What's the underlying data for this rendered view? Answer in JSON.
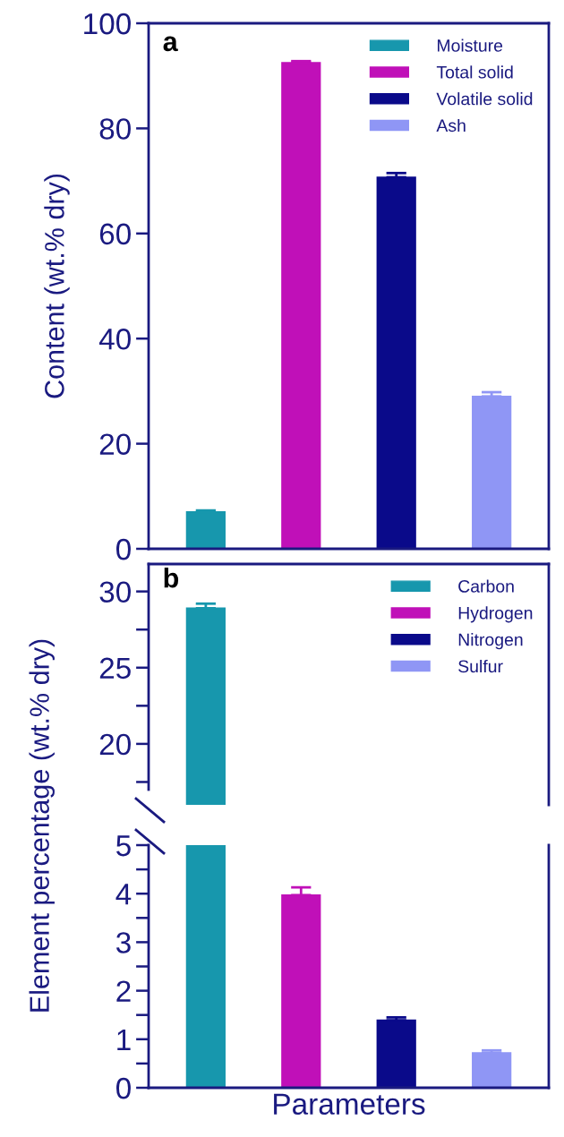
{
  "chart_data": [
    {
      "type": "bar",
      "ylabel": "Content (wt.% dry)",
      "annotations": [
        "a"
      ],
      "categories": [
        null,
        null,
        null,
        null
      ],
      "ylim": [
        0,
        100
      ],
      "yticks": [
        0,
        20,
        40,
        60,
        80,
        100
      ],
      "legend": "top right",
      "series": [
        {
          "name": "Moisture",
          "color": "#1797ad",
          "values": [
            7.0,
            null,
            null,
            null
          ],
          "errors": [
            0.3,
            null,
            null,
            null
          ]
        },
        {
          "name": "Total solid",
          "color": "#c010b8",
          "values": [
            null,
            92.5,
            null,
            null
          ],
          "errors": [
            null,
            0.3,
            null,
            null
          ]
        },
        {
          "name": "Volatile solid",
          "color": "#0a0a8a",
          "values": [
            null,
            null,
            70.7,
            null
          ],
          "errors": [
            null,
            null,
            0.8,
            null
          ]
        },
        {
          "name": "Ash",
          "color": "#8f96f5",
          "values": [
            null,
            null,
            null,
            29.0
          ],
          "errors": [
            null,
            null,
            null,
            0.8
          ]
        }
      ]
    },
    {
      "type": "bar",
      "annotations": [
        "b"
      ],
      "categories": [
        null,
        null,
        null,
        null
      ],
      "ylim": [
        16,
        31.8
      ],
      "yticks": [
        {
          "value": 17.5,
          "label": null
        },
        20,
        {
          "value": 22.5,
          "label": null
        },
        25,
        {
          "value": 27.5,
          "label": null
        },
        30
      ],
      "legend": "top right",
      "tick_labels": "y",
      "series": [
        {
          "name": "Carbon",
          "color": "#1797ad",
          "values": [
            28.9,
            null,
            null,
            null
          ],
          "errors": [
            0.3,
            null,
            null,
            null
          ]
        },
        {
          "name": "Hydrogen",
          "color": "#c010b8",
          "values": [
            null,
            null,
            null,
            null
          ]
        },
        {
          "name": "Nitrogen",
          "color": "#0a0a8a",
          "values": [
            null,
            null,
            null,
            null
          ]
        },
        {
          "name": "Sulfur",
          "color": "#8f96f5",
          "values": [
            null,
            null,
            null,
            null
          ]
        }
      ]
    },
    {
      "type": "bar",
      "xlabel": "Parameters",
      "ylabel": "Element percentage (wt.% dry)",
      "categories": [
        null,
        null,
        null,
        null
      ],
      "ylim": [
        0,
        5
      ],
      "yticks": [
        0,
        {
          "value": 0.5,
          "label": null
        },
        1,
        {
          "value": 1.5,
          "label": null
        },
        2,
        {
          "value": 2.5,
          "label": null
        },
        3,
        {
          "value": 3.5,
          "label": null
        },
        4,
        {
          "value": 4.5,
          "label": null
        },
        5
      ],
      "tick_labels": "y",
      "series": [
        {
          "color": "#1797ad",
          "values": [
            5,
            null,
            null,
            null
          ]
        },
        {
          "color": "#c010b8",
          "values": [
            null,
            3.97,
            null,
            null
          ],
          "errors": [
            null,
            0.16,
            null,
            null
          ]
        },
        {
          "color": "#0a0a8a",
          "values": [
            null,
            null,
            1.39,
            null
          ],
          "errors": [
            null,
            null,
            0.06,
            null
          ]
        },
        {
          "color": "#8f96f5",
          "values": [
            null,
            null,
            null,
            0.72
          ],
          "errors": [
            null,
            null,
            null,
            0.05
          ]
        }
      ]
    }
  ]
}
